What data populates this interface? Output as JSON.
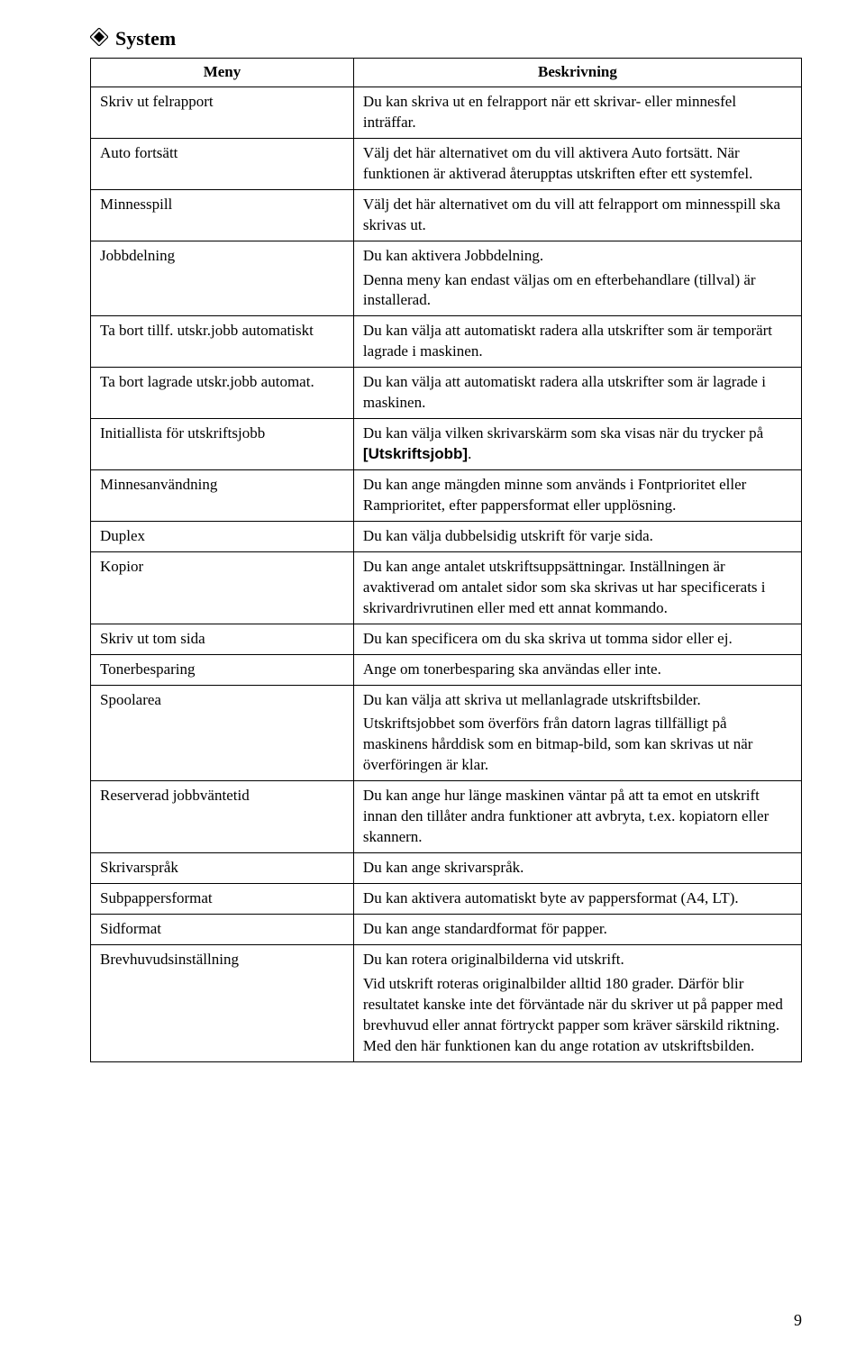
{
  "section_title": "System",
  "columns": {
    "menu": "Meny",
    "desc": "Beskrivning"
  },
  "rows": [
    {
      "menu": "Skriv ut felrapport",
      "desc": [
        "Du kan skriva ut en felrapport när ett skrivar- eller minnesfel inträffar."
      ]
    },
    {
      "menu": "Auto fortsätt",
      "desc": [
        "Välj det här alternativet om du vill aktivera Auto fortsätt. När funktionen är aktiverad återupptas utskriften efter ett systemfel."
      ]
    },
    {
      "menu": "Minnesspill",
      "desc": [
        "Välj det här alternativet om du vill att felrapport om minnesspill ska skrivas ut."
      ]
    },
    {
      "menu": "Jobbdelning",
      "desc": [
        "Du kan aktivera Jobbdelning.",
        "Denna meny kan endast väljas om en efterbehandlare (tillval) är installerad."
      ]
    },
    {
      "menu": "Ta bort tillf. utskr.jobb automatiskt",
      "desc": [
        "Du kan välja att automatiskt radera alla utskrifter som är temporärt lagrade i maskinen."
      ]
    },
    {
      "menu": "Ta bort lagrade utskr.jobb automat.",
      "desc": [
        "Du kan välja att automatiskt radera alla utskrifter som är lagrade i maskinen."
      ]
    },
    {
      "menu": "Initiallista för utskriftsjobb",
      "desc_html": "Du kan välja vilken skrivarskärm som ska visas när du trycker på <span class=\"bold-inline\">[Utskriftsjobb]</span>."
    },
    {
      "menu": "Minnesanvändning",
      "desc": [
        "Du kan ange mängden minne som används i Fontprioritet eller Ramprioritet, efter pappersformat eller upplösning."
      ]
    },
    {
      "menu": "Duplex",
      "desc": [
        "Du kan välja dubbelsidig utskrift för varje sida."
      ]
    },
    {
      "menu": "Kopior",
      "desc": [
        "Du kan ange antalet utskriftsuppsättningar. Inställningen är avaktiverad om antalet sidor som ska skrivas ut har specificerats i skrivardrivrutinen eller med ett annat kommando."
      ]
    },
    {
      "menu": "Skriv ut tom sida",
      "desc": [
        "Du kan specificera om du ska skriva ut tomma sidor eller ej."
      ]
    },
    {
      "menu": "Tonerbesparing",
      "desc": [
        "Ange om tonerbesparing ska användas eller inte."
      ]
    },
    {
      "menu": "Spoolarea",
      "desc": [
        "Du kan välja att skriva ut mellanlagrade utskriftsbilder.",
        "Utskriftsjobbet som överförs från datorn lagras tillfälligt på maskinens hårddisk som en bitmap-bild, som kan skrivas ut när överföringen är klar."
      ]
    },
    {
      "menu": "Reserverad jobbväntetid",
      "desc": [
        "Du kan ange hur länge maskinen väntar på att ta emot en utskrift innan den tillåter andra funktioner att avbryta, t.ex. kopiatorn eller skannern."
      ]
    },
    {
      "menu": "Skrivarspråk",
      "desc": [
        "Du kan ange skrivarspråk."
      ]
    },
    {
      "menu": "Subpappersformat",
      "desc": [
        "Du kan aktivera automatiskt byte av pappersformat (A4, LT)."
      ]
    },
    {
      "menu": "Sidformat",
      "desc": [
        "Du kan ange standardformat för papper."
      ]
    },
    {
      "menu": "Brevhuvudsinställning",
      "desc": [
        "Du kan rotera originalbilderna vid utskrift.",
        "Vid utskrift roteras originalbilder alltid 180 grader. Därför blir resultatet kanske inte det förväntade när du skriver ut på papper med brevhuvud eller annat förtryckt papper som kräver särskild riktning. Med den här funktionen kan du ange rotation av utskriftsbilden."
      ]
    }
  ],
  "page_number": "9"
}
